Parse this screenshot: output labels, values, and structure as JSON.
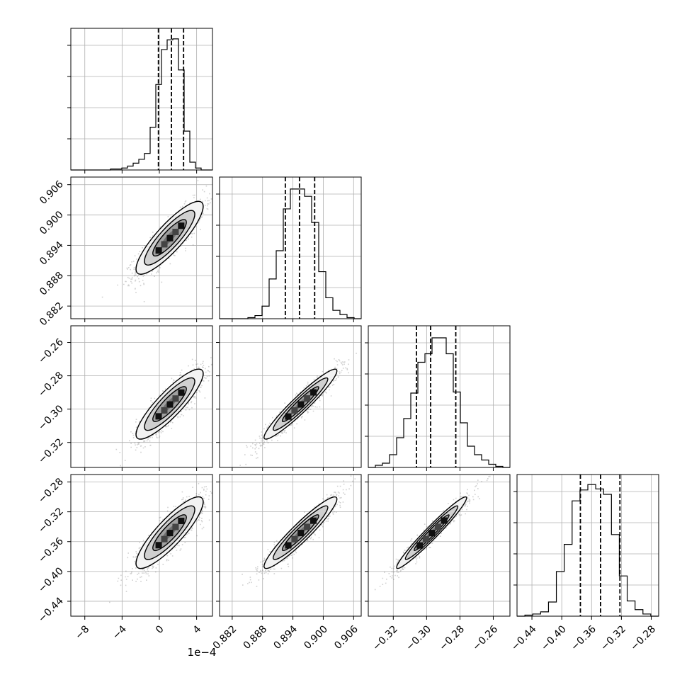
{
  "chart_data": {
    "type": "corner",
    "params": [
      {
        "range": [
          -9.5,
          5.7
        ],
        "ticks": [
          -8,
          -4,
          0,
          4
        ],
        "tick_labels": [
          "−8",
          "−4",
          "0",
          "4"
        ],
        "quantiles": [
          -0.1,
          1.3,
          2.6
        ],
        "offset_label": "1e−4"
      },
      {
        "range": [
          0.8795,
          0.9075
        ],
        "ticks": [
          0.882,
          0.888,
          0.894,
          0.9,
          0.906
        ],
        "tick_labels": [
          "0.882",
          "0.888",
          "0.894",
          "0.900",
          "0.906"
        ],
        "quantiles": [
          0.8925,
          0.8953,
          0.8983
        ]
      },
      {
        "range": [
          -0.335,
          -0.25
        ],
        "ticks": [
          -0.32,
          -0.3,
          -0.28,
          -0.26
        ],
        "tick_labels": [
          "−0.32",
          "−0.30",
          "−0.28",
          "−0.26"
        ],
        "quantiles": [
          -0.3061,
          -0.2976,
          -0.2825
        ]
      },
      {
        "range": [
          -0.46,
          -0.27
        ],
        "ticks": [
          -0.44,
          -0.4,
          -0.36,
          -0.32,
          -0.28
        ],
        "tick_labels": [
          "−0.44",
          "−0.40",
          "−0.36",
          "−0.32",
          "−0.28"
        ],
        "quantiles": [
          -0.375,
          -0.348,
          -0.322
        ]
      }
    ],
    "histograms": [
      {
        "edges_range": [
          -9.5,
          5.7
        ],
        "counts": [
          0,
          0,
          0,
          0,
          0,
          0,
          0,
          1,
          1,
          2,
          4,
          7,
          11,
          17,
          44,
          88,
          124,
          134,
          135,
          103,
          40,
          8,
          2,
          0,
          0
        ],
        "max": 140
      },
      {
        "edges_range": [
          0.8795,
          0.9075
        ],
        "counts": [
          0,
          0,
          0,
          0,
          1,
          3,
          12,
          38,
          65,
          105,
          124,
          124,
          117,
          92,
          45,
          20,
          8,
          4,
          1,
          0
        ],
        "max": 130
      },
      {
        "edges_range": [
          -0.335,
          -0.25
        ],
        "counts": [
          0,
          2,
          4,
          12,
          28,
          46,
          70,
          99,
          107,
          122,
          122,
          107,
          71,
          42,
          20,
          12,
          7,
          3,
          1,
          0
        ],
        "max": 128
      },
      {
        "edges_range": [
          -0.46,
          -0.27
        ],
        "counts": [
          0,
          1,
          2,
          4,
          13,
          41,
          66,
          106,
          116,
          121,
          117,
          112,
          75,
          37,
          14,
          6,
          2,
          0
        ],
        "max": 125
      }
    ],
    "pairs": [
      {
        "x": 0,
        "y": 1,
        "center": [
          1.1,
          0.8955
        ],
        "sd": [
          1.8,
          0.0036
        ],
        "corr": 0.86
      },
      {
        "x": 0,
        "y": 2,
        "center": [
          1.1,
          -0.297
        ],
        "sd": [
          1.8,
          0.0105
        ],
        "corr": 0.87
      },
      {
        "x": 1,
        "y": 2,
        "center": [
          0.8955,
          -0.297
        ],
        "sd": [
          0.0036,
          0.0105
        ],
        "corr": 0.95
      },
      {
        "x": 0,
        "y": 3,
        "center": [
          1.1,
          -0.348
        ],
        "sd": [
          1.8,
          0.024
        ],
        "corr": 0.86
      },
      {
        "x": 1,
        "y": 3,
        "center": [
          0.8955,
          -0.348
        ],
        "sd": [
          0.0036,
          0.024
        ],
        "corr": 0.94
      },
      {
        "x": 2,
        "y": 3,
        "center": [
          -0.297,
          -0.348
        ],
        "sd": [
          0.0105,
          0.024
        ],
        "corr": 0.97
      }
    ],
    "grid": true,
    "colors": {
      "line": "#000000",
      "grid": "#b0b0b0",
      "scatter": "#555555"
    }
  }
}
